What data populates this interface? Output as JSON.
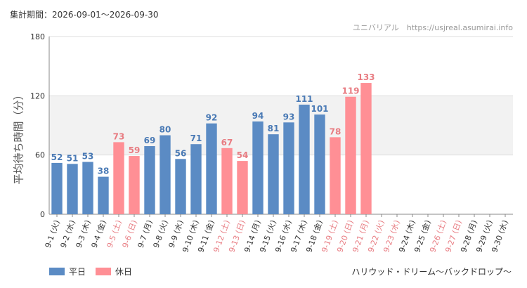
{
  "header": {
    "period": "集計期間：2026-09-01～2026-09-30",
    "credit": "ユニバリアル　https://usjreal.asumirai.info"
  },
  "footer": {
    "attraction": "ハリウッド・ドリーム～バックドロップ～"
  },
  "colors": {
    "weekday": "#5b8bc4",
    "holiday": "#ff8f95",
    "weekday_text": "#4a7ab5",
    "holiday_text": "#e87c82",
    "axis_text": "#333333",
    "band": "#f2f2f2",
    "grid": "#dddddd"
  },
  "chart_data": {
    "type": "bar",
    "title": "",
    "xlabel": "",
    "ylabel": "平均待ち時間（分）",
    "ylim": [
      0,
      180
    ],
    "yticks": [
      0,
      60,
      120,
      180
    ],
    "shaded_band": [
      60,
      120
    ],
    "legend": [
      {
        "key": "weekday",
        "label": "平日"
      },
      {
        "key": "holiday",
        "label": "休日"
      }
    ],
    "categories": [
      "9-1 (火)",
      "9-2 (水)",
      "9-3 (木)",
      "9-4 (金)",
      "9-5 (土)",
      "9-6 (日)",
      "9-7 (月)",
      "9-8 (火)",
      "9-9 (水)",
      "9-10 (木)",
      "9-11 (金)",
      "9-12 (土)",
      "9-13 (日)",
      "9-14 (月)",
      "9-15 (火)",
      "9-16 (水)",
      "9-17 (木)",
      "9-18 (金)",
      "9-19 (土)",
      "9-20 (日)",
      "9-21 (月)",
      "9-22 (火)",
      "9-23 (水)",
      "9-24 (木)",
      "9-25 (金)",
      "9-26 (土)",
      "9-27 (日)",
      "9-28 (月)",
      "9-29 (火)",
      "9-30 (水)"
    ],
    "values": [
      52,
      51,
      53,
      38,
      73,
      59,
      69,
      80,
      56,
      71,
      92,
      67,
      54,
      94,
      81,
      93,
      111,
      101,
      78,
      119,
      133,
      null,
      null,
      null,
      null,
      null,
      null,
      null,
      null,
      null
    ],
    "day_type": [
      "weekday",
      "weekday",
      "weekday",
      "weekday",
      "holiday",
      "holiday",
      "weekday",
      "weekday",
      "weekday",
      "weekday",
      "weekday",
      "holiday",
      "holiday",
      "weekday",
      "weekday",
      "weekday",
      "weekday",
      "weekday",
      "holiday",
      "holiday",
      "holiday",
      "holiday",
      "holiday",
      "weekday",
      "weekday",
      "holiday",
      "holiday",
      "weekday",
      "weekday",
      "weekday"
    ]
  }
}
